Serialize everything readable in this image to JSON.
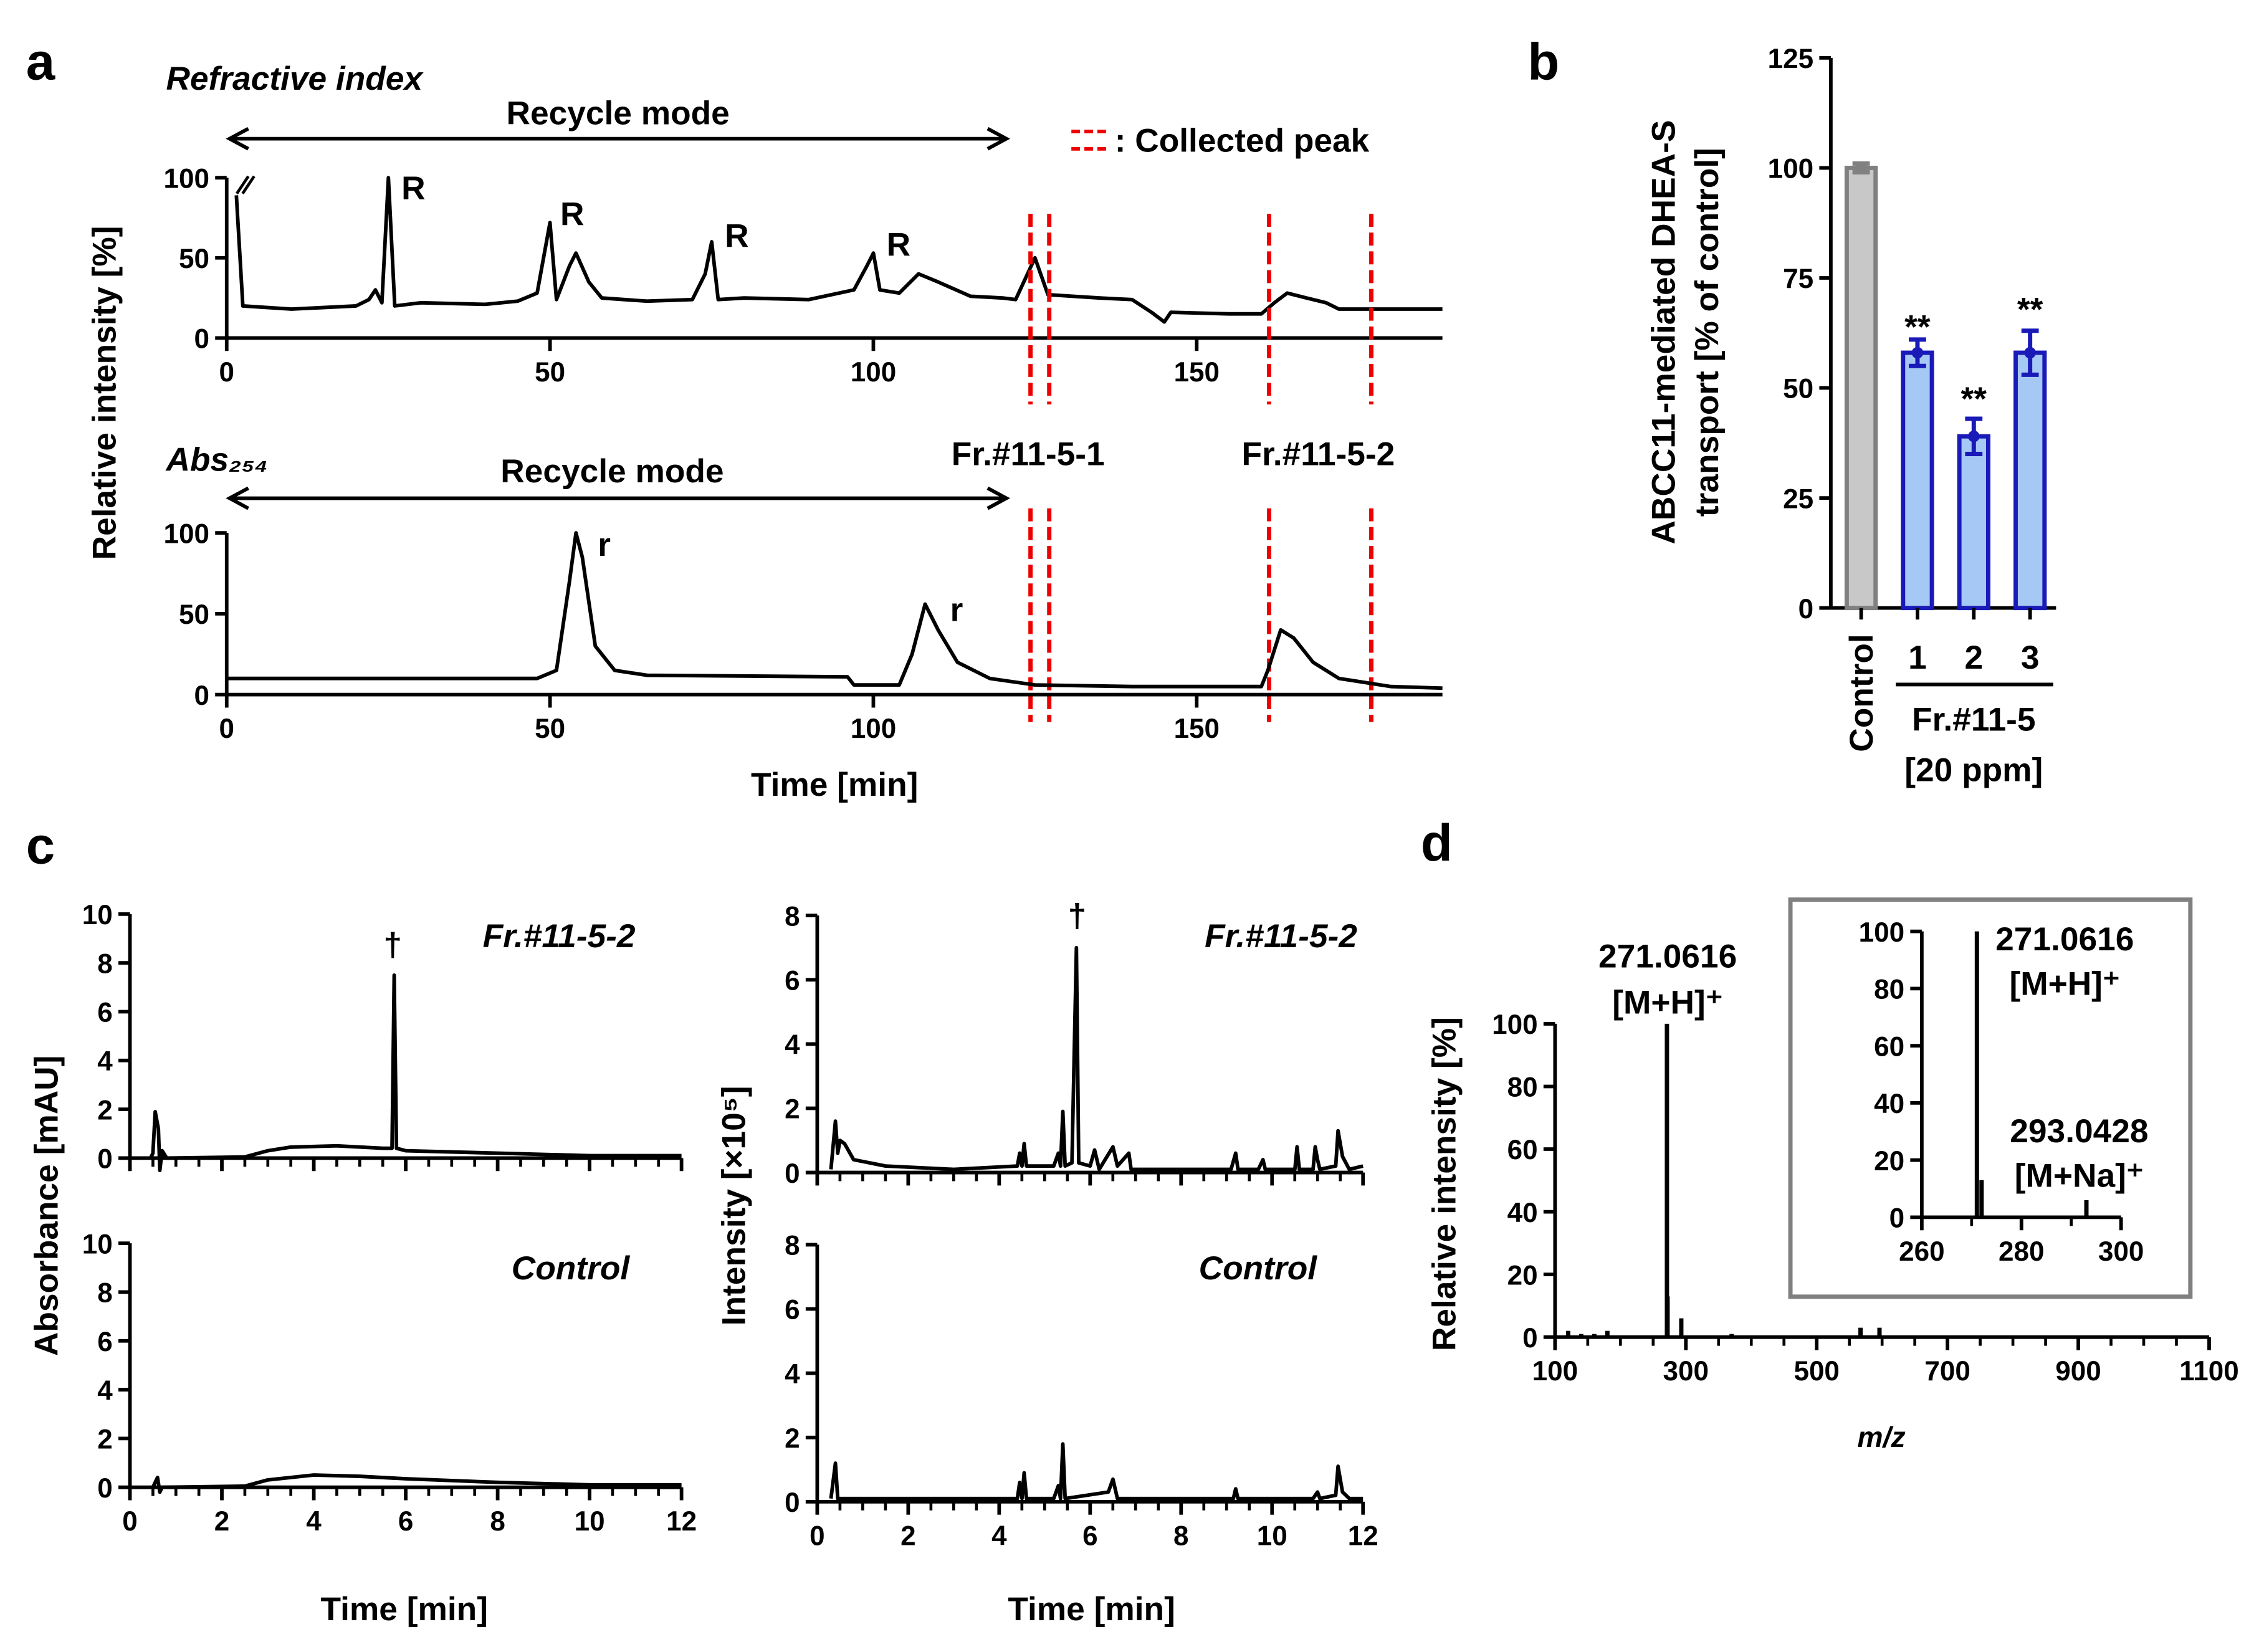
{
  "chart_data": [
    {
      "type": "line",
      "panel": "a",
      "title": "Refractive index",
      "y_label": "Relative intensity [%]",
      "annotations": [
        "Recycle mode",
        ": Collected peak",
        "R",
        "R",
        "R",
        "R"
      ],
      "collected_peaks": [
        124.3,
        127.2,
        161.2,
        177
      ],
      "x": [
        1.5,
        2.5,
        10,
        20,
        22,
        23,
        24,
        25,
        26,
        30,
        40,
        45,
        48,
        50,
        51,
        53,
        54,
        56,
        58,
        65,
        72,
        74,
        75,
        76,
        80,
        90,
        97,
        99,
        100,
        101,
        104,
        107,
        110,
        115,
        120,
        122,
        125,
        127,
        135,
        140,
        143,
        145,
        146,
        155,
        160,
        162,
        164,
        167,
        170,
        172,
        180,
        188
      ],
      "values": [
        89,
        20,
        18,
        20,
        24,
        30,
        22,
        100,
        20,
        22,
        21,
        23,
        28,
        72,
        24,
        45,
        53,
        35,
        25,
        23,
        24,
        40,
        60,
        24,
        25,
        24,
        30,
        45,
        53,
        30,
        28,
        40,
        35,
        26,
        25,
        24,
        50,
        27,
        25,
        24,
        16,
        10,
        16,
        15,
        15,
        22,
        28,
        25,
        22,
        18,
        18,
        18
      ],
      "color": "#000000",
      "xlim": [
        0,
        188
      ],
      "xticks": [
        0,
        50,
        100,
        150
      ],
      "ylim": [
        0,
        100
      ],
      "yticks": [
        0,
        50,
        100
      ]
    },
    {
      "type": "line",
      "title": "Abs₂₅₄",
      "x_label": "Time [min]",
      "annotations": [
        "Recycle mode",
        "Fr.#11-5-1",
        "Fr.#11-5-2",
        "r",
        "r"
      ],
      "x": [
        0,
        48,
        51,
        53,
        54,
        55,
        57,
        60,
        65,
        96,
        97,
        104,
        106,
        108,
        110,
        113,
        118,
        125,
        140,
        160,
        161,
        163,
        165,
        168,
        172,
        180,
        188
      ],
      "values": [
        10,
        10,
        15,
        70,
        100,
        85,
        30,
        15,
        12,
        11,
        6,
        6,
        25,
        56,
        40,
        20,
        10,
        6,
        5,
        5,
        15,
        40,
        35,
        20,
        10,
        5,
        4
      ],
      "color": "#000000",
      "xlim": [
        0,
        188
      ],
      "xticks": [
        0,
        50,
        100,
        150
      ],
      "ylim": [
        0,
        100
      ],
      "yticks": [
        0,
        50,
        100
      ]
    },
    {
      "type": "bar",
      "panel": "b",
      "y_label": [
        "ABCC11-mediated DHEA-S",
        "transport [% of control]"
      ],
      "categories": [
        "Control",
        "1",
        "2",
        "3"
      ],
      "values": [
        100,
        58,
        39,
        58
      ],
      "errors": [
        1,
        3,
        4,
        5
      ],
      "colors": [
        "#c8c8c8",
        "#a6c8f5",
        "#a6c8f5",
        "#a6c8f5"
      ],
      "edge_colors": [
        "#808080",
        "#1a1ab8",
        "#1a1ab8",
        "#1a1ab8"
      ],
      "group_label": [
        "Fr.#11-5",
        "[20 ppm]"
      ],
      "annotations": [
        "**",
        "**",
        "**"
      ],
      "ylim": [
        0,
        125
      ],
      "yticks": [
        0,
        25,
        50,
        75,
        100,
        125
      ]
    },
    {
      "type": "line",
      "panel": "c",
      "title": "Fr.#11-5-2",
      "y_label": "Absorbance [mAU]",
      "annotations": [
        "†"
      ],
      "x": [
        0.45,
        0.5,
        0.55,
        0.62,
        0.65,
        0.7,
        0.8,
        2.5,
        3,
        3.5,
        4.5,
        5.5,
        5.7,
        5.75,
        5.8,
        6,
        8,
        10,
        12
      ],
      "values": [
        0,
        0.2,
        1.9,
        1.2,
        -0.5,
        0.3,
        0,
        0.05,
        0.3,
        0.45,
        0.5,
        0.4,
        0.4,
        7.5,
        0.4,
        0.3,
        0.2,
        0.1,
        0.1
      ],
      "color": "#000000",
      "xlim": [
        0,
        12
      ],
      "xticks": [
        0,
        2,
        4,
        6,
        8,
        10,
        12
      ],
      "xtick_labels": false,
      "ylim": [
        0,
        10
      ],
      "yticks": [
        0,
        2,
        4,
        6,
        8,
        10
      ]
    },
    {
      "type": "line",
      "title": "Control",
      "x_label": "Time [min]",
      "x": [
        0.5,
        0.6,
        0.65,
        0.7,
        2.5,
        3,
        4,
        5,
        6,
        8,
        10,
        12
      ],
      "values": [
        0,
        0.4,
        -0.2,
        0,
        0.05,
        0.3,
        0.5,
        0.45,
        0.35,
        0.2,
        0.1,
        0.1
      ],
      "color": "#000000",
      "xlim": [
        0,
        12
      ],
      "xticks": [
        0,
        2,
        4,
        6,
        8,
        10,
        12
      ],
      "ylim": [
        0,
        10
      ],
      "yticks": [
        0,
        2,
        4,
        6,
        8,
        10
      ]
    },
    {
      "type": "line",
      "title": "Fr.#11-5-2",
      "y_label": "Intensity [×10⁵]",
      "annotations": [
        "†"
      ],
      "x": [
        0.3,
        0.4,
        0.45,
        0.5,
        0.6,
        0.8,
        1.5,
        3,
        4.4,
        4.45,
        4.5,
        4.55,
        4.6,
        5.2,
        5.3,
        5.35,
        5.4,
        5.45,
        5.6,
        5.7,
        5.75,
        6.0,
        6.1,
        6.2,
        6.5,
        6.6,
        6.85,
        6.9,
        9.1,
        9.2,
        9.25,
        9.7,
        9.8,
        9.85,
        10.5,
        10.55,
        10.6,
        10.9,
        10.95,
        11.0,
        11.05,
        11.4,
        11.45,
        11.55,
        11.7,
        12
      ],
      "values": [
        0.1,
        1.6,
        0.6,
        1.0,
        0.9,
        0.4,
        0.2,
        0.1,
        0.2,
        0.6,
        0.2,
        0.9,
        0.2,
        0.2,
        0.6,
        0.2,
        1.9,
        0.2,
        0.3,
        7.0,
        0.3,
        0.2,
        0.7,
        0.1,
        0.8,
        0.2,
        0.6,
        0.1,
        0.1,
        0.6,
        0.1,
        0.1,
        0.4,
        0.1,
        0.1,
        0.8,
        0.1,
        0.1,
        0.8,
        0.4,
        0.1,
        0.2,
        1.3,
        0.5,
        0.1,
        0.2
      ],
      "color": "#000000",
      "xlim": [
        0,
        12
      ],
      "xticks": [
        0,
        2,
        4,
        6,
        8,
        10,
        12
      ],
      "xtick_labels": false,
      "ylim": [
        0,
        8
      ],
      "yticks": [
        0,
        2,
        4,
        6,
        8
      ]
    },
    {
      "type": "line",
      "title": "Control",
      "x_label": "Time [min]",
      "x": [
        0.3,
        0.4,
        0.45,
        4.4,
        4.45,
        4.5,
        4.55,
        4.6,
        5.2,
        5.3,
        5.35,
        5.4,
        5.45,
        6.4,
        6.5,
        6.6,
        9.15,
        9.2,
        9.25,
        10.9,
        11.0,
        11.05,
        11.4,
        11.45,
        11.55,
        11.7,
        12
      ],
      "values": [
        0.1,
        1.2,
        0.1,
        0.1,
        0.6,
        0.1,
        0.9,
        0.1,
        0.1,
        0.5,
        0.1,
        1.8,
        0.1,
        0.3,
        0.7,
        0.1,
        0.1,
        0.4,
        0.1,
        0.1,
        0.3,
        0.1,
        0.2,
        1.1,
        0.3,
        0.1,
        0.1
      ],
      "color": "#000000",
      "xlim": [
        0,
        12
      ],
      "xticks": [
        0,
        2,
        4,
        6,
        8,
        10,
        12
      ],
      "ylim": [
        0,
        8
      ],
      "yticks": [
        0,
        2,
        4,
        6,
        8
      ]
    },
    {
      "type": "stem",
      "panel": "d",
      "y_label": "Relative intensity [%]",
      "x_label": "m/z",
      "annotations": [
        "271.0616",
        "[M+H]⁺"
      ],
      "x": [
        120,
        140,
        160,
        180,
        271.0616,
        272,
        293,
        370,
        567,
        596
      ],
      "values": [
        2,
        1,
        1,
        2,
        100,
        13,
        6,
        1,
        3,
        3
      ],
      "color": "#000000",
      "xlim": [
        100,
        1100
      ],
      "xticks": [
        100,
        300,
        500,
        700,
        900,
        1100
      ],
      "ylim": [
        0,
        100
      ],
      "yticks": [
        0,
        20,
        40,
        60,
        80,
        100
      ]
    },
    {
      "type": "stem",
      "annotations": [
        "271.0616",
        "[M+H]⁺",
        "293.0428",
        "[M+Na]⁺"
      ],
      "x": [
        271.0616,
        272,
        293.0428
      ],
      "values": [
        100,
        13,
        6
      ],
      "color": "#000000",
      "xlim": [
        260,
        300
      ],
      "xticks": [
        260,
        280,
        300
      ],
      "ylim": [
        0,
        100
      ],
      "yticks": [
        0,
        20,
        40,
        60,
        80,
        100
      ]
    }
  ]
}
